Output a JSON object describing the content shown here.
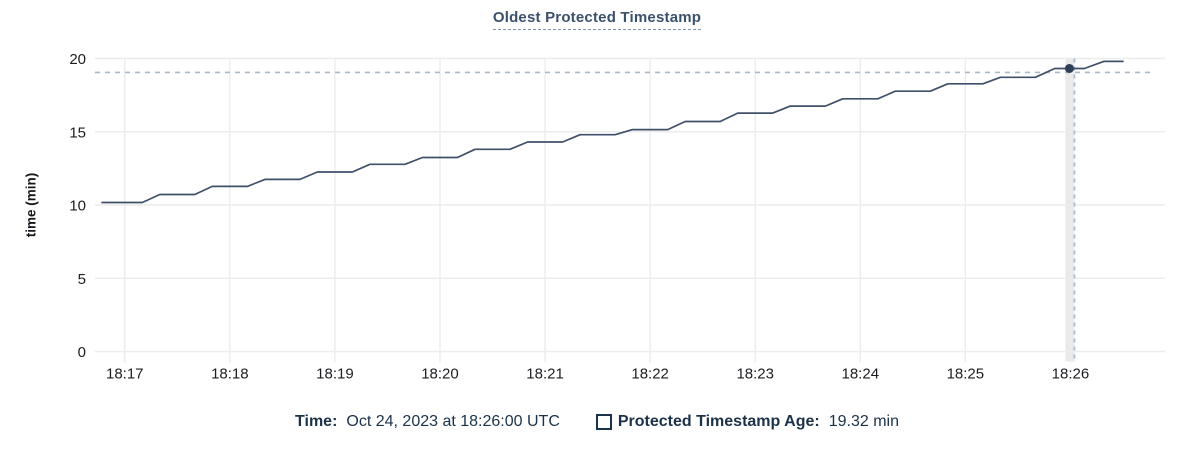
{
  "header": {
    "title": "Oldest Protected Timestamp"
  },
  "y_axis": {
    "title": "time (min)"
  },
  "footer": {
    "time_label": "Time:",
    "time_value": "Oct 24, 2023 at 18:26:00 UTC",
    "series_label": "Protected Timestamp Age:",
    "series_value": "19.32 min"
  },
  "colors": {
    "background": "#ffffff",
    "line": "#40506b",
    "point": "#2f3e57",
    "grid": "#ececec",
    "hover_band": "#e9e9e9",
    "crosshair": "#a8bac9",
    "axis_text": "#1b1d21",
    "title_text": "#3a506b",
    "legend_text": "#1c3249"
  },
  "chart_data": {
    "type": "line",
    "title": "Oldest Protected Timestamp",
    "xlabel": "",
    "ylabel": "time (min)",
    "grid": true,
    "legend_position": "bottom",
    "ylim": [
      0,
      20
    ],
    "y_ticks": [
      0,
      5,
      10,
      15,
      20
    ],
    "x_unit": "seconds since 18:17:00 UTC",
    "xlim": [
      -17,
      594
    ],
    "x_ticks": [
      {
        "t": 0,
        "label": "18:17"
      },
      {
        "t": 60,
        "label": "18:18"
      },
      {
        "t": 120,
        "label": "18:19"
      },
      {
        "t": 180,
        "label": "18:20"
      },
      {
        "t": 240,
        "label": "18:21"
      },
      {
        "t": 300,
        "label": "18:22"
      },
      {
        "t": 360,
        "label": "18:23"
      },
      {
        "t": 420,
        "label": "18:24"
      },
      {
        "t": 480,
        "label": "18:25"
      },
      {
        "t": 540,
        "label": "18:26"
      }
    ],
    "series": [
      {
        "name": "Protected Timestamp Age",
        "unit": "min",
        "points": [
          [
            -13,
            10.17
          ],
          [
            10,
            10.17
          ],
          [
            20,
            10.72
          ],
          [
            40,
            10.72
          ],
          [
            50,
            11.27
          ],
          [
            70,
            11.27
          ],
          [
            80,
            11.75
          ],
          [
            100,
            11.75
          ],
          [
            110,
            12.25
          ],
          [
            130,
            12.25
          ],
          [
            140,
            12.78
          ],
          [
            160,
            12.78
          ],
          [
            170,
            13.24
          ],
          [
            190,
            13.24
          ],
          [
            200,
            13.8
          ],
          [
            220,
            13.8
          ],
          [
            230,
            14.3
          ],
          [
            250,
            14.3
          ],
          [
            260,
            14.8
          ],
          [
            280,
            14.8
          ],
          [
            290,
            15.15
          ],
          [
            310,
            15.15
          ],
          [
            320,
            15.7
          ],
          [
            340,
            15.7
          ],
          [
            350,
            16.27
          ],
          [
            370,
            16.27
          ],
          [
            380,
            16.75
          ],
          [
            400,
            16.75
          ],
          [
            410,
            17.25
          ],
          [
            430,
            17.25
          ],
          [
            440,
            17.77
          ],
          [
            460,
            17.77
          ],
          [
            470,
            18.27
          ],
          [
            490,
            18.27
          ],
          [
            500,
            18.72
          ],
          [
            520,
            18.72
          ],
          [
            531,
            19.32
          ],
          [
            548,
            19.32
          ],
          [
            559,
            19.8
          ],
          [
            570,
            19.8
          ]
        ]
      }
    ],
    "highlight": {
      "t": 540,
      "x_label": "18:26",
      "value": 19.32,
      "value_label": "19.32 min",
      "time_label": "Oct 24, 2023 at 18:26:00 UTC"
    }
  }
}
